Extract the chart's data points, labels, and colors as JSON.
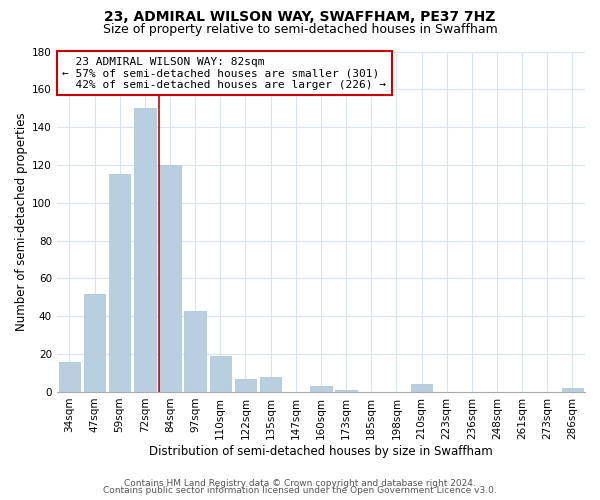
{
  "title": "23, ADMIRAL WILSON WAY, SWAFFHAM, PE37 7HZ",
  "subtitle": "Size of property relative to semi-detached houses in Swaffham",
  "xlabel": "Distribution of semi-detached houses by size in Swaffham",
  "ylabel": "Number of semi-detached properties",
  "bar_color": "#b8cfe0",
  "bar_edge_color": "#b0c8da",
  "categories": [
    "34sqm",
    "47sqm",
    "59sqm",
    "72sqm",
    "84sqm",
    "97sqm",
    "110sqm",
    "122sqm",
    "135sqm",
    "147sqm",
    "160sqm",
    "173sqm",
    "185sqm",
    "198sqm",
    "210sqm",
    "223sqm",
    "236sqm",
    "248sqm",
    "261sqm",
    "273sqm",
    "286sqm"
  ],
  "values": [
    16,
    52,
    115,
    150,
    120,
    43,
    19,
    7,
    8,
    0,
    3,
    1,
    0,
    0,
    4,
    0,
    0,
    0,
    0,
    0,
    2
  ],
  "ylim": [
    0,
    180
  ],
  "yticks": [
    0,
    20,
    40,
    60,
    80,
    100,
    120,
    140,
    160,
    180
  ],
  "marker_label": "23 ADMIRAL WILSON WAY: 82sqm",
  "marker_line_index": 4,
  "pct_smaller": "57%",
  "pct_smaller_count": 301,
  "pct_larger": "42%",
  "pct_larger_count": 226,
  "annotation_box_color": "#ffffff",
  "annotation_box_edge_color": "#cc0000",
  "marker_line_color": "#cc0000",
  "footer_line1": "Contains HM Land Registry data © Crown copyright and database right 2024.",
  "footer_line2": "Contains public sector information licensed under the Open Government Licence v3.0.",
  "grid_color": "#d8e4f0",
  "background_color": "#ffffff",
  "title_fontsize": 10,
  "subtitle_fontsize": 9,
  "axis_label_fontsize": 8.5,
  "tick_fontsize": 7.5,
  "annotation_fontsize": 8,
  "footer_fontsize": 6.5
}
